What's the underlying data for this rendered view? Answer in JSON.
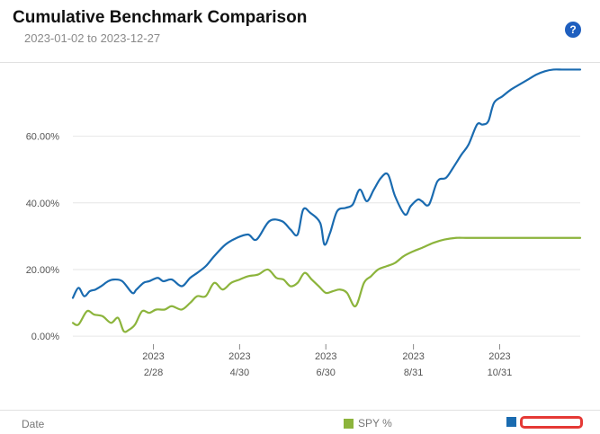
{
  "header": {
    "title": "Cumulative Benchmark Comparison",
    "date_range": "2023-01-02 to 2023-12-27",
    "help_label": "?"
  },
  "footer": {
    "date_label": "Date"
  },
  "colors": {
    "series_blue": "#1a6bb0",
    "series_green": "#8cb43c",
    "grid": "#e6e6e6",
    "highlight": "#e53935"
  },
  "chart_data": {
    "type": "line",
    "x_tick_labels": [
      {
        "line1": "2023",
        "line2": "2/28",
        "date": "2023-02-28"
      },
      {
        "line1": "2023",
        "line2": "4/30",
        "date": "2023-04-30"
      },
      {
        "line1": "2023",
        "line2": "6/30",
        "date": "2023-06-30"
      },
      {
        "line1": "2023",
        "line2": "8/31",
        "date": "2023-08-31"
      },
      {
        "line1": "2023",
        "line2": "10/31",
        "date": "2023-10-31"
      }
    ],
    "y_ticks": [
      {
        "value": 0,
        "label": "0.00%"
      },
      {
        "value": 20,
        "label": "20.00%"
      },
      {
        "value": 40,
        "label": "40.00%"
      },
      {
        "value": 60,
        "label": "60.00%"
      }
    ],
    "xlim": [
      "2023-01-02",
      "2023-12-27"
    ],
    "ylim": [
      -4,
      82
    ],
    "grid": true,
    "legend_position": "bottom",
    "series": [
      {
        "name": "",
        "color": "#1a6bb0",
        "x": [
          "2023-01-02",
          "2023-01-06",
          "2023-01-10",
          "2023-01-14",
          "2023-01-18",
          "2023-01-22",
          "2023-01-27",
          "2023-01-31",
          "2023-02-06",
          "2023-02-13",
          "2023-02-16",
          "2023-02-21",
          "2023-02-25",
          "2023-03-03",
          "2023-03-07",
          "2023-03-13",
          "2023-03-20",
          "2023-03-26",
          "2023-03-31",
          "2023-04-06",
          "2023-04-12",
          "2023-04-20",
          "2023-04-28",
          "2023-05-06",
          "2023-05-12",
          "2023-05-21",
          "2023-05-30",
          "2023-06-05",
          "2023-06-10",
          "2023-06-14",
          "2023-06-19",
          "2023-06-26",
          "2023-06-29",
          "2023-07-03",
          "2023-07-08",
          "2023-07-14",
          "2023-07-19",
          "2023-07-24",
          "2023-07-29",
          "2023-08-03",
          "2023-08-08",
          "2023-08-13",
          "2023-08-18",
          "2023-08-25",
          "2023-08-29",
          "2023-09-03",
          "2023-09-06",
          "2023-09-11",
          "2023-09-17",
          "2023-09-23",
          "2023-09-28",
          "2023-10-04",
          "2023-10-09",
          "2023-10-15",
          "2023-10-19",
          "2023-10-23",
          "2023-10-27",
          "2023-11-02",
          "2023-11-08",
          "2023-11-14",
          "2023-11-20",
          "2023-11-26",
          "2023-12-02",
          "2023-12-08",
          "2023-12-14",
          "2023-12-19",
          "2023-12-23",
          "2023-12-27"
        ],
        "y": [
          11.5,
          14.5,
          12,
          13.5,
          14,
          15,
          16.5,
          17,
          16.5,
          13,
          14,
          16,
          16.5,
          17.5,
          16.5,
          17,
          15,
          17.5,
          19,
          21,
          24,
          27.5,
          29.5,
          30.5,
          29,
          34.5,
          34.5,
          32,
          30.5,
          38,
          37,
          34,
          27.5,
          31,
          37.5,
          38.5,
          39.5,
          44,
          40.5,
          44,
          47.5,
          48.5,
          42,
          36.5,
          39,
          41,
          40.5,
          39.5,
          46.5,
          47.5,
          50.5,
          54.5,
          57.5,
          63.5,
          63.5,
          64.5,
          70,
          72,
          74,
          75.5,
          77,
          78.5,
          79.5,
          80,
          80,
          80,
          80,
          80
        ]
      },
      {
        "name": "SPY %",
        "color": "#8cb43c",
        "x": [
          "2023-01-02",
          "2023-01-06",
          "2023-01-12",
          "2023-01-17",
          "2023-01-23",
          "2023-01-29",
          "2023-02-03",
          "2023-02-07",
          "2023-02-11",
          "2023-02-15",
          "2023-02-20",
          "2023-02-25",
          "2023-03-02",
          "2023-03-08",
          "2023-03-13",
          "2023-03-20",
          "2023-03-26",
          "2023-03-31",
          "2023-04-06",
          "2023-04-12",
          "2023-04-18",
          "2023-04-24",
          "2023-04-30",
          "2023-05-06",
          "2023-05-13",
          "2023-05-20",
          "2023-05-26",
          "2023-05-31",
          "2023-06-05",
          "2023-06-10",
          "2023-06-15",
          "2023-06-20",
          "2023-06-25",
          "2023-06-30",
          "2023-07-05",
          "2023-07-10",
          "2023-07-15",
          "2023-07-21",
          "2023-07-27",
          "2023-08-01",
          "2023-08-06",
          "2023-08-12",
          "2023-08-18",
          "2023-08-24",
          "2023-08-31",
          "2023-09-06",
          "2023-09-14",
          "2023-09-22",
          "2023-09-30",
          "2023-10-07",
          "2023-10-13",
          "2023-10-19",
          "2023-10-25",
          "2023-10-31",
          "2023-11-06",
          "2023-11-12",
          "2023-11-18",
          "2023-11-24",
          "2023-11-30",
          "2023-12-06",
          "2023-12-12",
          "2023-12-18",
          "2023-12-23",
          "2023-12-27"
        ],
        "y": [
          4,
          3.5,
          7.5,
          6.5,
          6,
          4,
          5.5,
          1.5,
          2,
          3.5,
          7.5,
          7,
          8,
          8,
          9,
          8,
          10,
          12,
          12,
          16,
          14,
          16,
          17,
          18,
          18.5,
          20,
          17.5,
          17,
          15,
          16,
          19,
          17,
          15,
          13,
          13.5,
          14,
          13,
          9,
          16,
          18,
          20,
          21,
          22,
          24,
          25.5,
          26.5,
          28,
          29,
          29.5,
          29.5,
          29.5,
          29.5,
          29.5,
          29.5,
          29.5,
          29.5,
          29.5,
          29.5,
          29.5,
          29.5,
          29.5,
          29.5,
          29.5,
          29.5
        ]
      }
    ]
  }
}
